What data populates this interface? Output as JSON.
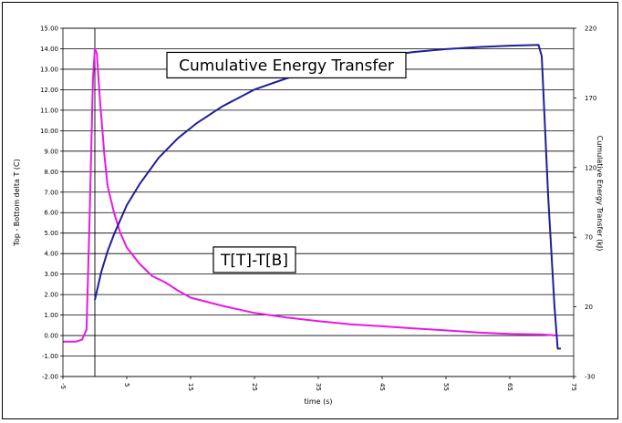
{
  "chart_data": {
    "type": "line",
    "title": "",
    "xlabel": "time (s)",
    "ylabel_left": "Top - Bottom delta T (C)",
    "ylabel_right": "Cumulative Energy Transfer (kJ)",
    "xlim": [
      -5,
      75
    ],
    "ylim_left": [
      -2,
      15
    ],
    "ylim_right": [
      -30,
      220
    ],
    "x_ticks": [
      "-5",
      "5",
      "15",
      "25",
      "35",
      "45",
      "55",
      "65",
      "75"
    ],
    "y_left_ticks": [
      "-2.00",
      "-1.00",
      "0.00",
      "1.00",
      "2.00",
      "3.00",
      "4.00",
      "5.00",
      "6.00",
      "7.00",
      "8.00",
      "9.00",
      "10.00",
      "11.00",
      "12.00",
      "13.00",
      "14.00",
      "15.00"
    ],
    "y_right_ticks": [
      "-30",
      "20",
      "70",
      "120",
      "170",
      "220"
    ],
    "grid": "horizontal",
    "vertical_marker_x": 0,
    "annotations": [
      {
        "text": "Cumulative Energy Transfer",
        "x": 30,
        "y": 13.2
      },
      {
        "text": "T[T]-T[B]",
        "x": 25,
        "y": 3.7
      }
    ],
    "series": [
      {
        "name": "T[T]-T[B]",
        "axis": "left",
        "color": "#e619e6",
        "x": [
          -5,
          -3,
          -2,
          -1.3,
          -0.8,
          -0.3,
          0,
          0.3,
          0.8,
          1.5,
          2,
          3,
          4,
          5,
          7,
          9,
          11,
          13,
          15,
          20,
          25,
          30,
          35,
          40,
          45,
          50,
          55,
          60,
          65,
          70,
          72.5
        ],
        "y": [
          -0.3,
          -0.3,
          -0.2,
          0.3,
          6,
          12.5,
          14.0,
          13.8,
          11.5,
          8.8,
          7.3,
          6.0,
          5.0,
          4.3,
          3.5,
          2.9,
          2.6,
          2.2,
          1.85,
          1.45,
          1.1,
          0.88,
          0.7,
          0.55,
          0.45,
          0.35,
          0.25,
          0.15,
          0.08,
          0.05,
          0.0
        ]
      },
      {
        "name": "Cumulative Energy Transfer",
        "axis": "right",
        "color": "#1f1f99",
        "x": [
          0,
          1,
          2,
          3,
          5,
          7,
          10,
          13,
          16,
          20,
          25,
          30,
          35,
          40,
          45,
          50,
          55,
          60,
          65,
          69.5,
          70,
          70.5,
          71,
          72,
          72.5,
          73
        ],
        "y": [
          25,
          45,
          60,
          72,
          93,
          108,
          127,
          141,
          152,
          164,
          176,
          184,
          191,
          196,
          200,
          203,
          205,
          206.5,
          207.5,
          208,
          200,
          150,
          100,
          20,
          -10,
          -10
        ]
      }
    ]
  }
}
